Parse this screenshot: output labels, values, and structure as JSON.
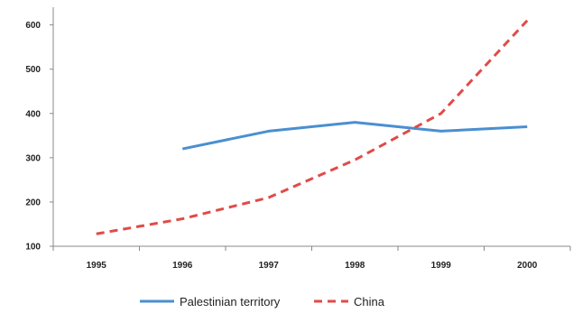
{
  "chart_data": {
    "type": "line",
    "title": "",
    "xlabel": "",
    "ylabel": "",
    "x": [
      "1995",
      "1996",
      "1997",
      "1998",
      "1999",
      "2000"
    ],
    "ylim": [
      100,
      640
    ],
    "yticks": [
      100,
      200,
      300,
      400,
      500,
      600
    ],
    "grid": false,
    "legend_position": "bottom",
    "series": [
      {
        "name": "Palestinian territory",
        "color": "#4a8fd0",
        "line_style": "solid",
        "values": [
          null,
          320,
          360,
          380,
          360,
          370
        ]
      },
      {
        "name": "China",
        "color": "#e04b48",
        "line_style": "dashed",
        "values": [
          128,
          162,
          210,
          295,
          400,
          610
        ]
      }
    ]
  }
}
